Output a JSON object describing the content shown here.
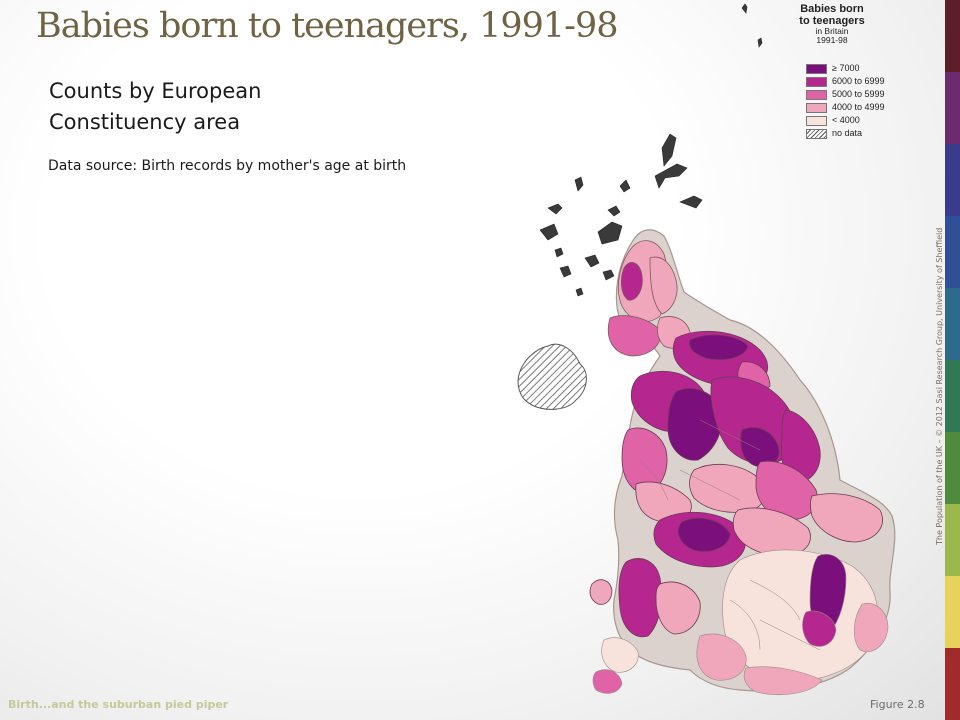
{
  "slide": {
    "title": "Babies born to teenagers, 1991-98",
    "subtitle": "Counts by European Constituency area",
    "source": "Data source: Birth records by mother's age at birth",
    "footer_left": "Birth...and the suburban pied piper",
    "footer_right": "Figure 2.8",
    "credit": "The Population of the UK – © 2012 Sasi Research Group, University of Sheffield"
  },
  "legend": {
    "title": "Babies born to teenagers",
    "subtitle_line1": "in Britain",
    "subtitle_line2": "1991-98",
    "items": [
      {
        "label": "≥ 7000",
        "color": "#7b0f7c"
      },
      {
        "label": "6000 to 6999",
        "color": "#b5268e"
      },
      {
        "label": "5000 to 5999",
        "color": "#df63a6"
      },
      {
        "label": "4000 to 4999",
        "color": "#f0a6bb"
      },
      {
        "label": "< 4000",
        "color": "#f8e3dc"
      },
      {
        "label": "no data",
        "color": "hatch"
      }
    ]
  },
  "accent_strip_colors": [
    "#5c1f2a",
    "#6b2b6e",
    "#3b3b8c",
    "#2f4f97",
    "#2d6a8c",
    "#2f7a55",
    "#4f8b3a",
    "#9ab84c",
    "#e7d35b",
    "#a12a2a"
  ],
  "colors": {
    "title": "#6f6344",
    "outline": "#b6a59f",
    "background_area": "#dcd2cd"
  }
}
